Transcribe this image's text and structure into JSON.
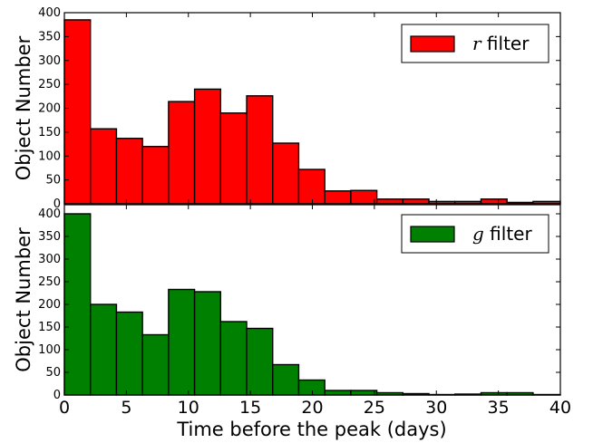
{
  "chart_data": [
    {
      "type": "bar",
      "bin_edges": [
        0,
        2.1,
        4.2,
        6.3,
        8.4,
        10.5,
        12.6,
        14.7,
        16.8,
        18.9,
        21.0,
        23.1,
        25.2,
        27.3,
        29.4,
        31.5,
        33.6,
        35.7,
        37.8,
        40
      ],
      "values": [
        385,
        157,
        137,
        120,
        214,
        240,
        190,
        226,
        127,
        72,
        27,
        28,
        10,
        10,
        5,
        5,
        10,
        3,
        5
      ],
      "color": "#ff0000",
      "legend": {
        "var": "r",
        "text": " filter",
        "position": "top-right"
      },
      "ylabel": "Object Number",
      "yticks": [
        "0",
        "50",
        "100",
        "150",
        "200",
        "250",
        "300",
        "350",
        "400"
      ],
      "ylim": [
        0,
        400
      ],
      "xlim": [
        0,
        40
      ]
    },
    {
      "type": "bar",
      "bin_edges": [
        0,
        2.1,
        4.2,
        6.3,
        8.4,
        10.5,
        12.6,
        14.7,
        16.8,
        18.9,
        21.0,
        23.1,
        25.2,
        27.3,
        29.4,
        31.5,
        33.6,
        35.7,
        37.8,
        40
      ],
      "values": [
        400,
        200,
        183,
        133,
        233,
        228,
        162,
        147,
        67,
        33,
        10,
        10,
        5,
        3,
        1,
        2,
        5,
        5,
        1
      ],
      "color": "#008000",
      "legend": {
        "var": "g",
        "text": " filter",
        "position": "top-right"
      },
      "ylabel": "Object Number",
      "yticks": [
        "0",
        "50",
        "100",
        "150",
        "200",
        "250",
        "300",
        "350",
        "400"
      ],
      "ylim": [
        0,
        420
      ],
      "xlim": [
        0,
        40
      ],
      "xlabel": "Time before the peak (days)",
      "xticks": [
        "0",
        "5",
        "10",
        "15",
        "20",
        "25",
        "30",
        "35",
        "40"
      ]
    }
  ]
}
